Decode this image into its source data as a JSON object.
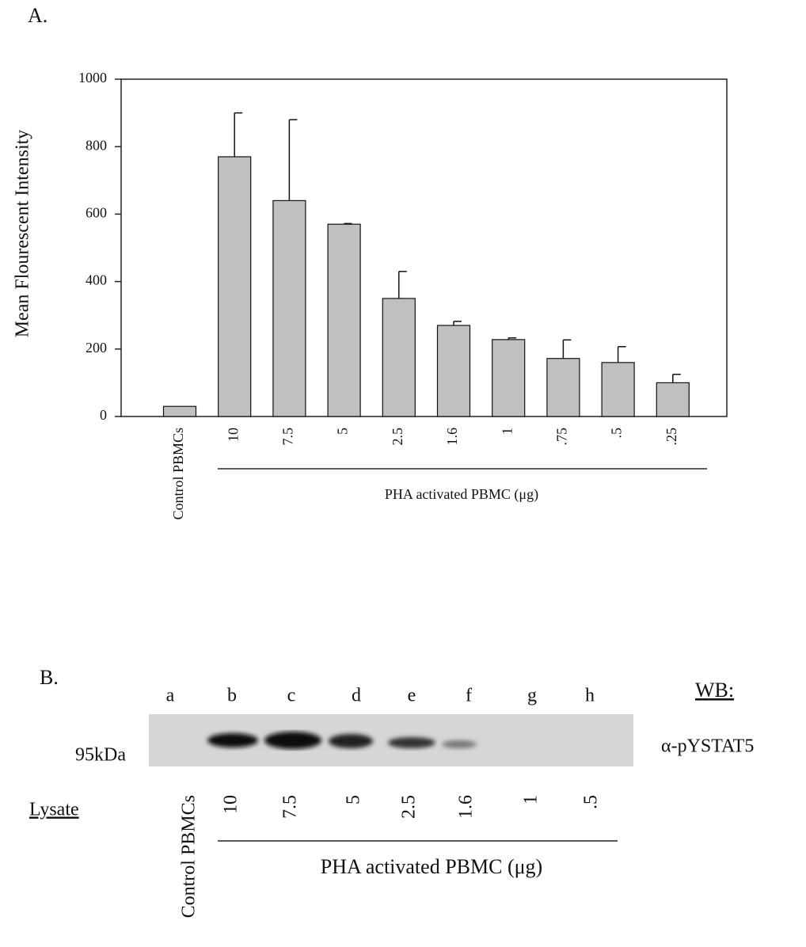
{
  "chart_data": {
    "type": "bar",
    "panel_label": "A.",
    "y_label": "Mean Flourescent Intensity",
    "categories": [
      "Control PBMCs",
      "10",
      "7.5",
      "5",
      "2.5",
      "1.6",
      "1",
      ".75",
      ".5",
      ".25"
    ],
    "values": [
      30,
      770,
      640,
      570,
      350,
      270,
      228,
      172,
      160,
      100
    ],
    "errors": [
      0,
      130,
      240,
      2,
      80,
      12,
      5,
      55,
      47,
      25
    ],
    "group_label": "PHA activated PBMC (μg)",
    "color": "#c0c0c0",
    "ylim": [
      0,
      1000
    ],
    "yticks": [
      0,
      200,
      400,
      600,
      800,
      1000
    ]
  },
  "blot": {
    "panel_label": "B.",
    "lanes": [
      "a",
      "b",
      "c",
      "d",
      "e",
      "f",
      "g",
      "h"
    ],
    "wb_label": "WB:",
    "antibody": "α-pYSTAT5",
    "marker": "95kDa",
    "lysate_label": "Lysate",
    "lysate_categories": [
      "Control PBMCs",
      "10",
      "7.5",
      "5",
      "2.5",
      "1.6",
      "1",
      ".5"
    ],
    "group_label": "PHA activated PBMC (μg)"
  }
}
